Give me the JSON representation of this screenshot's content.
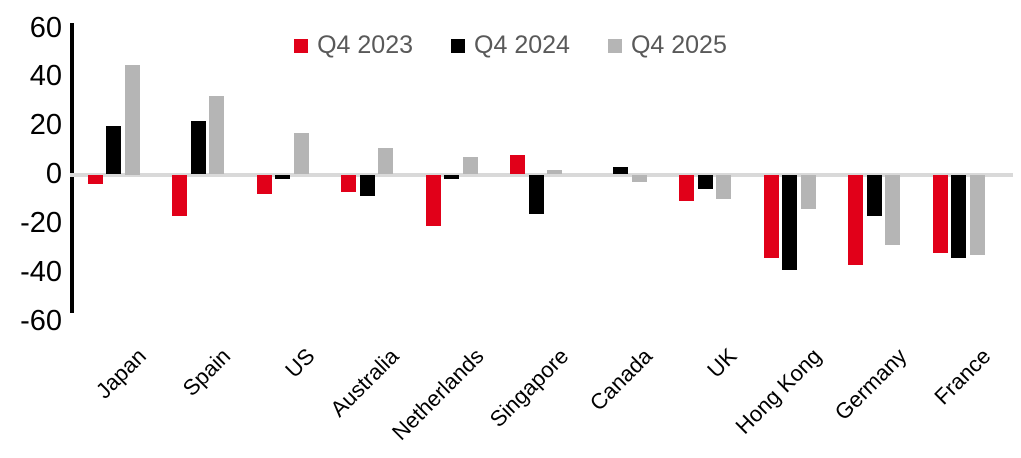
{
  "chart_data": {
    "type": "bar",
    "title": "",
    "xlabel": "",
    "ylabel": "",
    "grid": false,
    "legend_position": "top-center",
    "categories": [
      "Japan",
      "Spain",
      "US",
      "Australia",
      "Netherlands",
      "Singapore",
      "Canada",
      "UK",
      "Hong Kong",
      "Germany",
      "France"
    ],
    "series": [
      {
        "name": "Q4 2023",
        "color": "#e10019",
        "values": [
          -4,
          -17,
          -8,
          -7,
          -21,
          8,
          0,
          -11,
          -34,
          -37,
          -32
        ]
      },
      {
        "name": "Q4 2024",
        "color": "#000000",
        "values": [
          20,
          22,
          -2,
          -9,
          -2,
          -16,
          3,
          -6,
          -39,
          -17,
          -34
        ]
      },
      {
        "name": "Q4 2025",
        "color": "#b5b5b5",
        "values": [
          45,
          32,
          17,
          11,
          7,
          2,
          -3,
          -10,
          -14,
          -29,
          -33
        ]
      }
    ],
    "y_axis": {
      "min": -60,
      "max": 60,
      "tick_step": 20,
      "tick_values": [
        60,
        40,
        20,
        0,
        -20,
        -40,
        -60
      ],
      "tick_labels": [
        "60",
        "40",
        "20",
        "0",
        "-20",
        "-40",
        "-60"
      ]
    },
    "colors": {
      "axis_line": "#000000",
      "zero_line": "#d9d9d9",
      "legend_text": "#595959",
      "tick_text": "#000000"
    }
  }
}
